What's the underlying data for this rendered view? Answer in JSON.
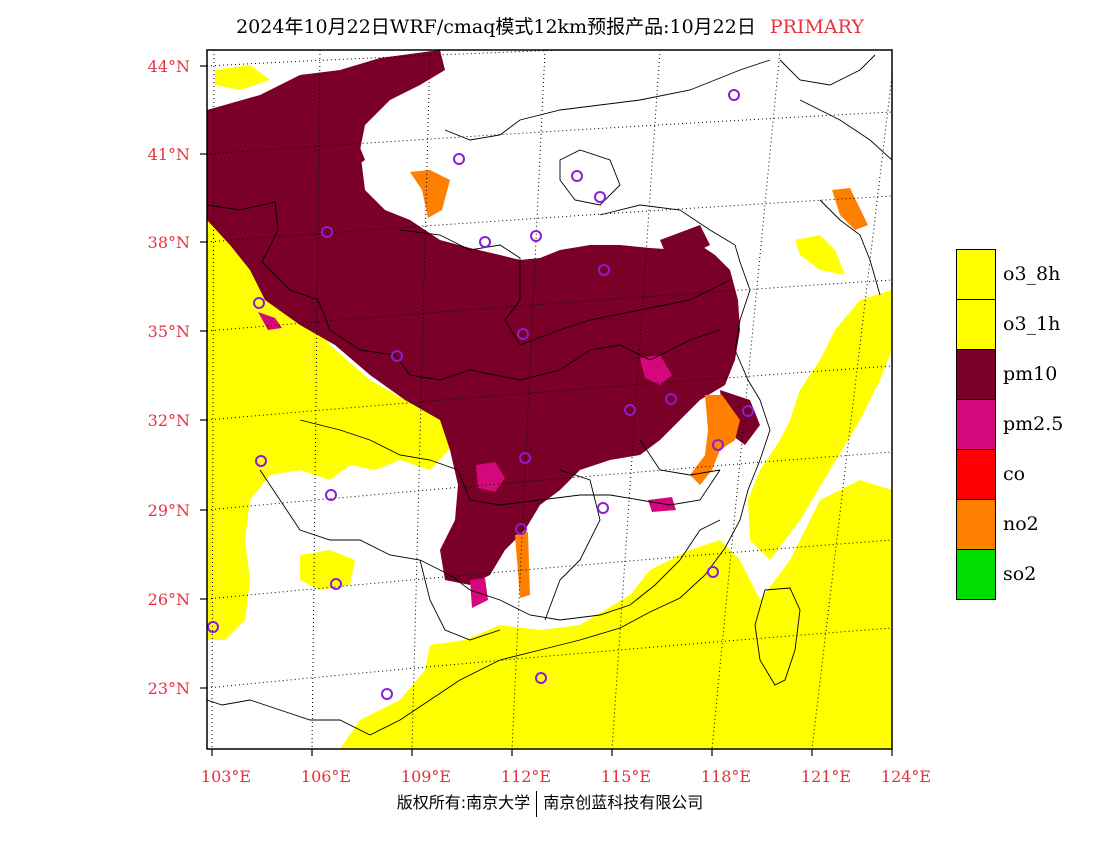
{
  "header": {
    "title": "2024年10月22日WRF/cmaq模式12km预报产品:10月22日",
    "tag": "PRIMARY"
  },
  "axes": {
    "lat_labels": [
      "44°N",
      "41°N",
      "38°N",
      "35°N",
      "32°N",
      "29°N",
      "26°N",
      "23°N"
    ],
    "lon_labels": [
      "103°E",
      "106°E",
      "109°E",
      "112°E",
      "115°E",
      "118°E",
      "121°E",
      "124°E"
    ]
  },
  "legend": {
    "items": [
      {
        "label": "o3_8h",
        "color": "#ffff00"
      },
      {
        "label": "o3_1h",
        "color": "#ffff00"
      },
      {
        "label": "pm10",
        "color": "#7a0028"
      },
      {
        "label": "pm2.5",
        "color": "#d4087a"
      },
      {
        "label": "co",
        "color": "#ff0000"
      },
      {
        "label": "no2",
        "color": "#ff7f00"
      },
      {
        "label": "so2",
        "color": "#00dd00"
      }
    ]
  },
  "footer": {
    "left": "版权所有:南京大学",
    "right": "南京创蓝科技有限公司"
  },
  "colors": {
    "label_red": "#e8313b",
    "pm10": "#7a0028",
    "o3": "#ffff00",
    "pm25": "#d4087a",
    "no2": "#ff7f00",
    "station": "#8a1fd0"
  }
}
